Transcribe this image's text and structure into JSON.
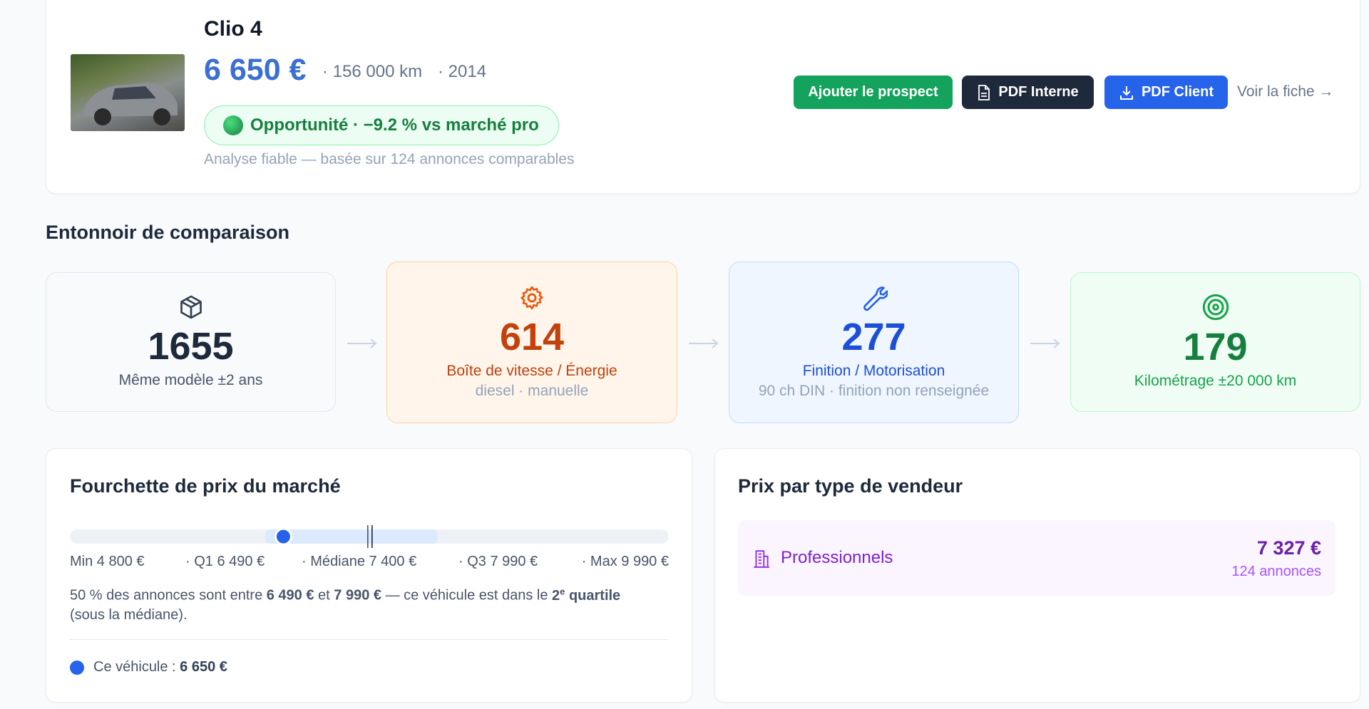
{
  "vehicle": {
    "title": "Clio 4",
    "price": "6 650 €",
    "mileage": "· 156 000 km",
    "year": "· 2014",
    "badge": "Opportunité · −9.2 % vs marché pro",
    "analysis": "Analyse fiable — basée sur 124 annonces comparables"
  },
  "actions": [
    "Ajouter le prospect",
    "PDF Interne",
    "PDF Client",
    "Voir la fiche →"
  ],
  "funnel": {
    "title": "Entonnoir de comparaison",
    "steps": [
      {
        "count": 1655,
        "label": "Même modèle ±2 ans"
      },
      {
        "count": 614,
        "label": "Boîte de vitesse / Énergie",
        "detail": "diesel · manuelle"
      },
      {
        "count": 277,
        "label": "Finition / Motorisation",
        "detail": "90 ch DIN · finition non renseignée"
      },
      {
        "count": 179,
        "label": "Kilométrage ±20 000 km"
      }
    ]
  },
  "market_range": {
    "title": "Fourchette de prix du marché",
    "ticks": [
      {
        "value": 4800,
        "label": "Min 4 800 €"
      },
      {
        "value": 6490,
        "label": "· Q1 6 490 €"
      },
      {
        "value": 7400,
        "label": "· Médiane 7 400 €"
      },
      {
        "value": 7990,
        "label": "· Q3 7 990 €"
      },
      {
        "value": 9990,
        "label": "· Max 9 990 €"
      }
    ],
    "vehicle_price": 6650,
    "summary": [
      "50 % des annonces sont entre ",
      "6 490 €",
      " et ",
      "7 990 €",
      " — ce véhicule est dans le ",
      "2",
      "e",
      " quartile",
      " (sous la médiane)."
    ],
    "legend": [
      "Ce véhicule : ",
      "6 650 €"
    ]
  },
  "seller_types": {
    "title": "Prix par type de vendeur",
    "rows": [
      {
        "name": "Professionnels",
        "price": "7 327 €",
        "count": "124 annonces"
      }
    ]
  }
}
